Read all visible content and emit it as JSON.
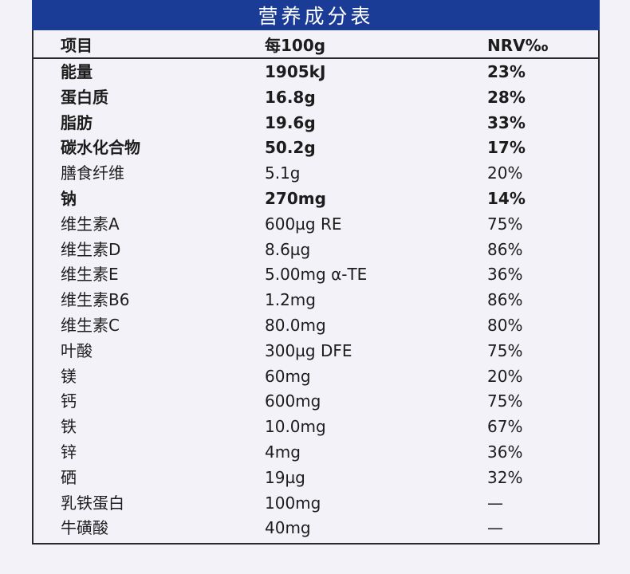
{
  "title": "营养成分表",
  "headers": {
    "item": "项目",
    "per100g": "每100g",
    "nrv": "NRV‰"
  },
  "rows": [
    {
      "item": "能量",
      "amount": "1905kJ",
      "nrv": "23%",
      "bold": true
    },
    {
      "item": "蛋白质",
      "amount": "16.8g",
      "nrv": "28%",
      "bold": true
    },
    {
      "item": "脂肪",
      "amount": "19.6g",
      "nrv": "33%",
      "bold": true
    },
    {
      "item": "碳水化合物",
      "amount": "50.2g",
      "nrv": "17%",
      "bold": true
    },
    {
      "item": "膳食纤维",
      "amount": "5.1g",
      "nrv": "20%",
      "bold": false
    },
    {
      "item": "钠",
      "amount": "270mg",
      "nrv": "14%",
      "bold": true
    },
    {
      "item": "维生素A",
      "amount": "600µg RE",
      "nrv": "75%",
      "bold": false
    },
    {
      "item": "维生素D",
      "amount": "8.6µg",
      "nrv": "86%",
      "bold": false
    },
    {
      "item": "维生素E",
      "amount": "5.00mg α-TE",
      "nrv": "36%",
      "bold": false
    },
    {
      "item": "维生素B6",
      "amount": "1.2mg",
      "nrv": "86%",
      "bold": false
    },
    {
      "item": "维生素C",
      "amount": "80.0mg",
      "nrv": "80%",
      "bold": false
    },
    {
      "item": "叶酸",
      "amount": "300µg DFE",
      "nrv": "75%",
      "bold": false
    },
    {
      "item": "镁",
      "amount": "60mg",
      "nrv": "20%",
      "bold": false
    },
    {
      "item": "钙",
      "amount": "600mg",
      "nrv": "75%",
      "bold": false
    },
    {
      "item": "铁",
      "amount": "10.0mg",
      "nrv": "67%",
      "bold": false
    },
    {
      "item": "锌",
      "amount": "4mg",
      "nrv": "36%",
      "bold": false
    },
    {
      "item": "硒",
      "amount": "19µg",
      "nrv": "32%",
      "bold": false
    },
    {
      "item": "乳铁蛋白",
      "amount": "100mg",
      "nrv": "—",
      "bold": false
    },
    {
      "item": "牛磺酸",
      "amount": "40mg",
      "nrv": "—",
      "bold": false
    }
  ],
  "colors": {
    "title_bar": "#1b3c96",
    "background": "#f3f2f8",
    "text": "#1c1c1c"
  }
}
